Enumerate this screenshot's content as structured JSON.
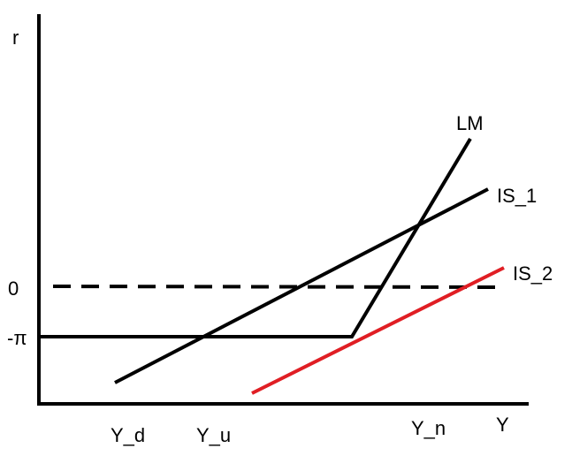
{
  "axes": {
    "y_label": "r",
    "x_label": "Y"
  },
  "y_ticks": {
    "zero": "0",
    "neg_pi": "-π"
  },
  "x_ticks": {
    "y_d": "Y_d",
    "y_u": "Y_u",
    "y_n": "Y_n"
  },
  "curves": {
    "lm": "LM",
    "is1": "IS_1",
    "is2": "IS_2"
  },
  "colors": {
    "axis": "#000000",
    "lm": "#000000",
    "is1": "#000000",
    "is2": "#e01e24",
    "zero_line": "#000000"
  }
}
